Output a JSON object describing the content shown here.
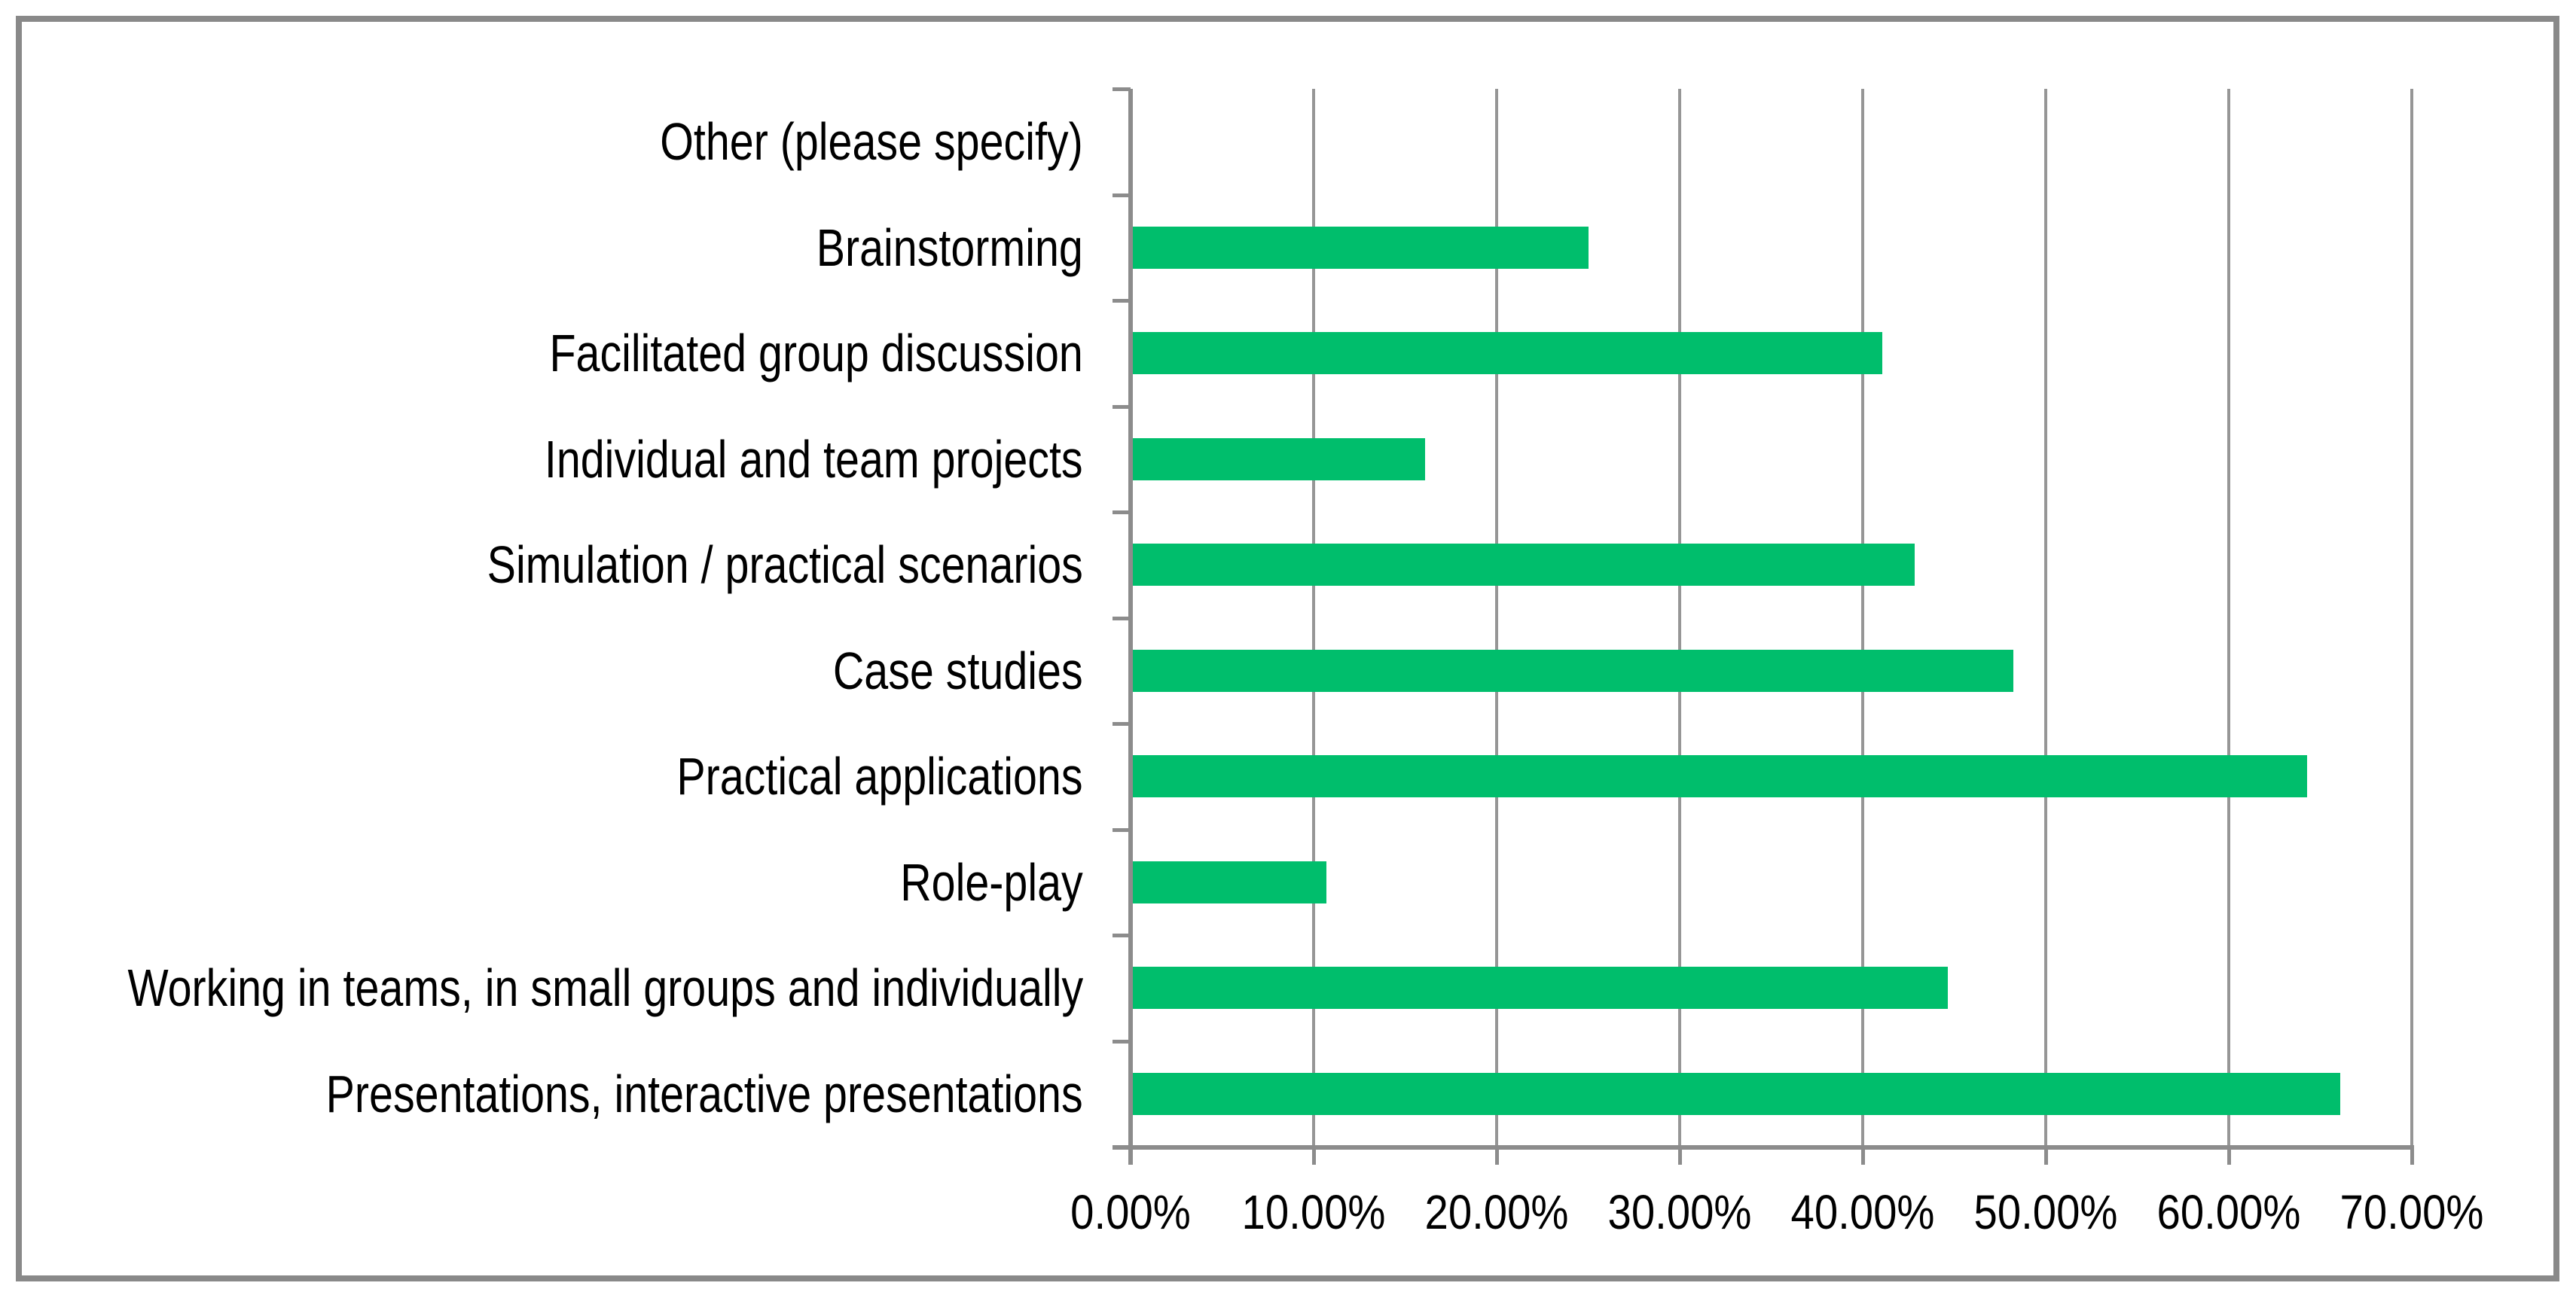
{
  "chart_data": {
    "type": "bar",
    "orientation": "horizontal",
    "title": "",
    "categories": [
      "Other (please specify)",
      "Brainstorming",
      "Facilitated group discussion",
      "Individual and team projects",
      "Simulation / practical scenarios",
      "Case studies",
      "Practical applications",
      "Role-play",
      "Working in teams, in small groups and individually",
      "Presentations, interactive presentations"
    ],
    "values": [
      0,
      25.0,
      41.07,
      16.07,
      42.86,
      48.21,
      64.29,
      10.71,
      44.64,
      66.07
    ],
    "value_unit": "%",
    "xlabel": "",
    "ylabel": "",
    "xlim": [
      0,
      70
    ],
    "xtick_step": 10,
    "xtick_labels": [
      "0.00%",
      "10.00%",
      "20.00%",
      "30.00%",
      "40.00%",
      "50.00%",
      "60.00%",
      "70.00%"
    ],
    "grid": true,
    "legend": false,
    "colors": {
      "bar": "#00BE6C",
      "gridline": "#969696",
      "axis": "#8C8C8C",
      "frame_border": "#898989",
      "background": "#FFFFFF",
      "label_text": "#000000"
    }
  }
}
